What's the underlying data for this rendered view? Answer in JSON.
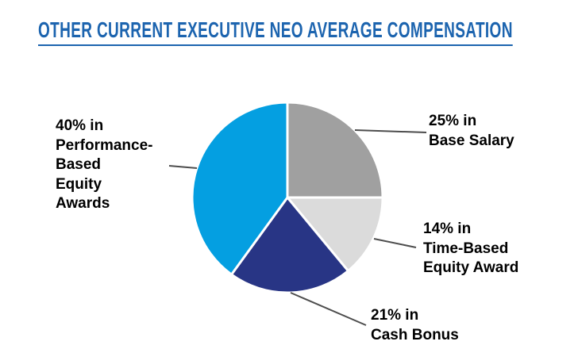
{
  "header": {
    "title": "OTHER CURRENT EXECUTIVE NEO AVERAGE COMPENSATION",
    "title_color": "#1C64AF"
  },
  "chart_data": {
    "type": "pie",
    "title": "OTHER CURRENT EXECUTIVE NEO AVERAGE COMPENSATION",
    "unit": "percent",
    "direction": "clockwise",
    "start_angle": "12-o'clock",
    "legend_position": "callout-labels",
    "slices": [
      {
        "name": "Base Salary",
        "value": 25,
        "color": "#A0A0A0"
      },
      {
        "name": "Time-Based Equity Award",
        "value": 14,
        "color": "#DBDBDB"
      },
      {
        "name": "Cash Bonus",
        "value": 21,
        "color": "#283585"
      },
      {
        "name": "Performance-Based Equity Awards",
        "value": 40,
        "color": "#049FE1"
      }
    ],
    "leader_line_color": "#4D4D4D",
    "label_text_color": "#000000"
  },
  "labels": {
    "performance": "40% in\nPerformance-\nBased\nEquity\nAwards",
    "base_salary": "25% in\nBase Salary",
    "time_based": "14% in\nTime-Based\nEquity Award",
    "cash_bonus": "21% in\nCash Bonus"
  }
}
